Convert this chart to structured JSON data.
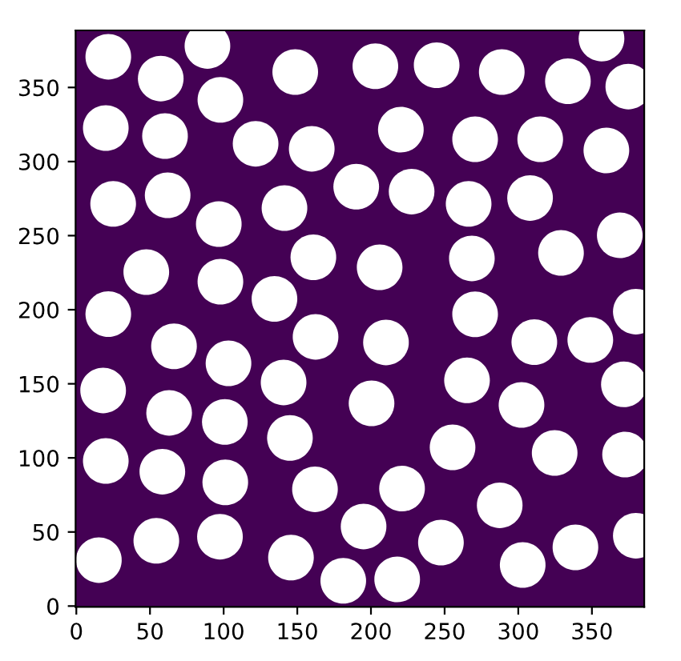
{
  "chart_data": {
    "type": "scatter",
    "marker": "circle",
    "xlim": [
      -0.5,
      385.5
    ],
    "ylim": [
      -0.5,
      388.5
    ],
    "xticks": [
      0,
      50,
      100,
      150,
      200,
      250,
      300,
      350
    ],
    "yticks": [
      0,
      50,
      100,
      150,
      200,
      250,
      300,
      350
    ],
    "bands": [
      {
        "axis": "x",
        "from": -0.5,
        "to": 385.5,
        "color": "#440154"
      }
    ],
    "series": [
      {
        "color": "#ffffff",
        "x": [
          21.7,
          57.3,
          89,
          148.6,
          97.8,
          20,
          60.2,
          121.7,
          159.8,
          25,
          62,
          96.7,
          141.3,
          190,
          47.5,
          97.8,
          160.9,
          134.5,
          21.7,
          205.9,
          203,
          244.6,
          288.8,
          333.7,
          356.5,
          374.7,
          220.3,
          270.7,
          314.9,
          359.8,
          227.6,
          266.3,
          308,
          268.5,
          329,
          368.9,
          66.3,
          103.3,
          162.4,
          140.7,
          18.2,
          63,
          100.8,
          145,
          200.4,
          20,
          58.4,
          101.1,
          162,
          195,
          15.3,
          54.3,
          97.5,
          145.7,
          181.2,
          270.7,
          379.8,
          210.2,
          310.9,
          348.9,
          265.2,
          302.2,
          371.7,
          255.4,
          324.7,
          372.5,
          221.1,
          287.4,
          247.5,
          338.8,
          379.8,
          303,
          217.8
        ],
        "values": [
          370.7,
          356,
          378,
          360.4,
          341.6,
          322.6,
          317.2,
          312,
          308.6,
          271.4,
          277.2,
          257.8,
          268.6,
          283,
          225.4,
          218.9,
          235.4,
          207.3,
          197,
          228.6,
          364.3,
          365,
          360.4,
          354.2,
          383,
          350.6,
          321.5,
          315,
          315,
          307.5,
          279.7,
          271.4,
          275.4,
          234.6,
          238.3,
          250.2,
          175.3,
          163.8,
          181.7,
          150.9,
          145.5,
          130.4,
          124.2,
          113.4,
          136.8,
          97.9,
          90.7,
          83.5,
          78.8,
          53.7,
          31,
          44,
          46.8,
          32.7,
          17,
          196.9,
          198.7,
          177.9,
          178.1,
          179.6,
          152.3,
          135.7,
          149.6,
          107.1,
          103.3,
          102.2,
          79.3,
          68,
          42.8,
          39.6,
          47.5,
          27.7,
          18
        ]
      }
    ]
  }
}
